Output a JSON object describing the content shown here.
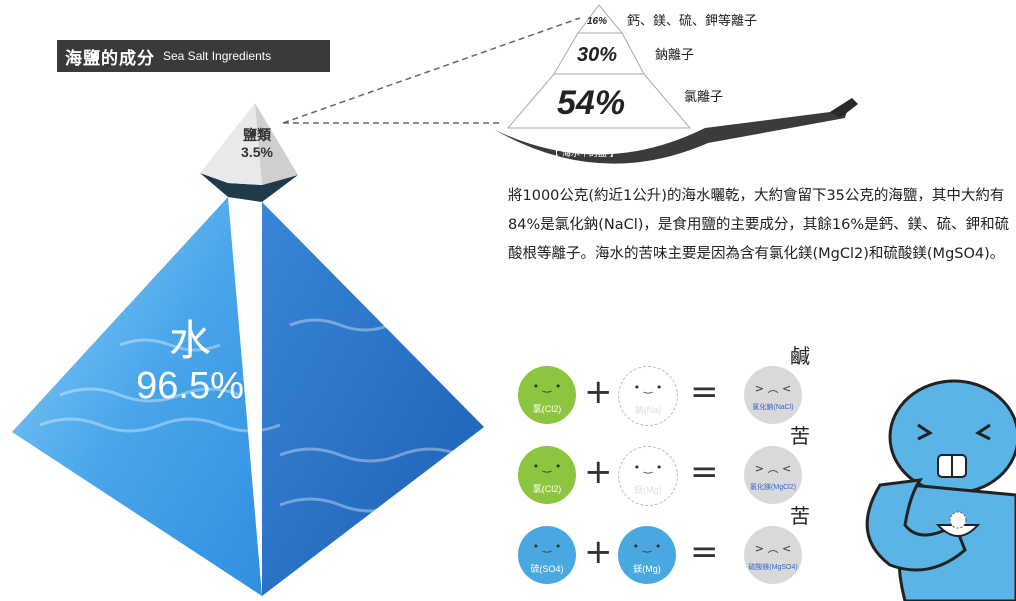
{
  "title": {
    "zh": "海鹽的成分",
    "en": "Sea Salt Ingredients"
  },
  "big_pyramid": {
    "salt_label": "鹽類",
    "salt_value": "3.5%",
    "water_label": "水",
    "water_value": "96.5%"
  },
  "salt_pyramid": {
    "top": {
      "value": "16%",
      "label": "鈣、鎂、硫、鉀等離子"
    },
    "middle": {
      "value": "30%",
      "label": "鈉離子"
    },
    "bottom": {
      "value": "54%",
      "label": "氯離子"
    },
    "pan_caption": "【 海水中的鹽 】"
  },
  "paragraph": "將1000公克(約近1公升)的海水曬乾，大約會留下35公克的海鹽，其中大約有84%是氯化鈉(NaCl)，是食用鹽的主要成分，其餘16%是鈣、鎂、硫、鉀和硫酸根等離子。海水的苦味主要是因為含有氯化鎂(MgCl2)和硫酸鎂(MgSO4)。",
  "equations": [
    {
      "left": "氯(Cl2)",
      "right": "鈉(Na)",
      "result": "氯化鈉(NaCl)",
      "taste": "鹹",
      "left_color": "#8cc63f",
      "right_color": "#ffffff"
    },
    {
      "left": "氯(Cl2)",
      "right": "鎂(Mg)",
      "result": "氯化鎂(MgCl2)",
      "taste": "苦",
      "left_color": "#8cc63f",
      "right_color": "#ffffff"
    },
    {
      "left": "硫(SO4)",
      "right": "鎂(Mg)",
      "result": "硫酸鎂(MgSO4)",
      "taste": "苦",
      "left_color": "#4aa8e0",
      "right_color": "#4aa8e0"
    }
  ],
  "operators": {
    "plus": "+",
    "equals": "="
  },
  "colors": {
    "water_light": "#5fb8ef",
    "water_dark": "#1e6fc4",
    "salt_face": "#f2f2f2",
    "pan": "#3b3b3b",
    "character": "#5ab4e5",
    "result_circle": "#d9d9d9"
  }
}
